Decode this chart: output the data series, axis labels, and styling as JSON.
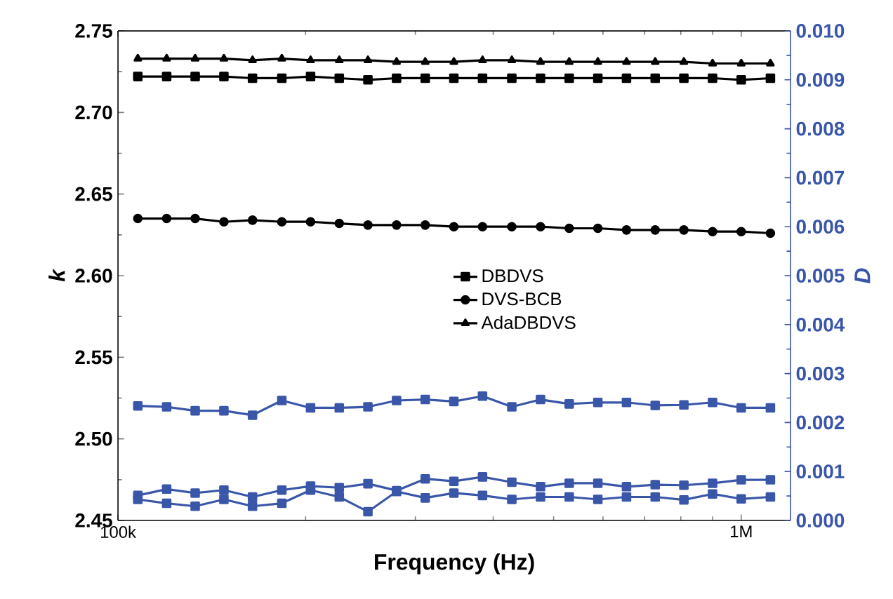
{
  "chart_data": {
    "type": "line",
    "xlabel": "Frequency (Hz)",
    "ylabel": "k",
    "y2label": "D",
    "log": "x",
    "x": [
      107600,
      119700,
      133000,
      147900,
      164400,
      183200,
      203700,
      226500,
      251800,
      279900,
      311200,
      345900,
      384600,
      428500,
      476400,
      529700,
      588800,
      654600,
      727800,
      809100,
      899500,
      1000000,
      1114000
    ],
    "xlim": [
      100000,
      1200000
    ],
    "xticks": [
      {
        "value": 100000,
        "label": "100k"
      },
      {
        "value": 1000000,
        "label": "1M"
      }
    ],
    "ylim": [
      2.45,
      2.75
    ],
    "yticks": [
      2.45,
      {
        "value": 2.5,
        "label": "2.50"
      },
      2.55,
      {
        "value": 2.6,
        "label": "2.60"
      },
      2.65,
      {
        "value": 2.7,
        "label": "2.70"
      },
      2.75
    ],
    "y2lim": [
      0,
      0.01
    ],
    "y2ticks": [
      {
        "value": 0,
        "label": "0.000"
      },
      0.001,
      0.002,
      0.003,
      0.004,
      0.005,
      0.006,
      0.007,
      0.008,
      0.009,
      {
        "value": 0.01,
        "label": "0.010"
      }
    ],
    "legend": "center",
    "series": [
      {
        "name": "DBDVS",
        "color": "#000000",
        "marker": "square",
        "values": [
          2.722,
          2.722,
          2.722,
          2.722,
          2.721,
          2.721,
          2.722,
          2.721,
          2.72,
          2.721,
          2.721,
          2.721,
          2.721,
          2.721,
          2.721,
          2.721,
          2.721,
          2.721,
          2.721,
          2.721,
          2.721,
          2.72,
          2.721
        ]
      },
      {
        "name": "DVS-BCB",
        "color": "#000000",
        "marker": "circle",
        "values": [
          2.635,
          2.635,
          2.635,
          2.633,
          2.634,
          2.633,
          2.633,
          2.632,
          2.631,
          2.631,
          2.631,
          2.63,
          2.63,
          2.63,
          2.63,
          2.629,
          2.629,
          2.628,
          2.628,
          2.628,
          2.627,
          2.627,
          2.626
        ]
      },
      {
        "name": "AdaDBDVS",
        "color": "#000000",
        "marker": "triangle",
        "values": [
          2.733,
          2.733,
          2.733,
          2.733,
          2.732,
          2.733,
          2.732,
          2.732,
          2.732,
          2.731,
          2.731,
          2.731,
          2.732,
          2.732,
          2.731,
          2.731,
          2.731,
          2.731,
          2.731,
          2.731,
          2.73,
          2.73,
          2.73
        ]
      },
      {
        "color": "#3a56a8",
        "marker": "square",
        "axis": "y2",
        "values": [
          0.00234,
          0.00232,
          0.00224,
          0.00224,
          0.00215,
          0.00245,
          0.0023,
          0.0023,
          0.00232,
          0.00245,
          0.00247,
          0.00243,
          0.00254,
          0.00232,
          0.00247,
          0.00238,
          0.00241,
          0.00241,
          0.00235,
          0.00236,
          0.00241,
          0.0023,
          0.0023
        ]
      },
      {
        "color": "#3a56a8",
        "marker": "square",
        "axis": "y2",
        "values": [
          0.00051,
          0.00064,
          0.00056,
          0.00062,
          0.00048,
          0.00062,
          0.0007,
          0.00067,
          0.00075,
          0.00061,
          0.00085,
          0.0008,
          0.00089,
          0.00078,
          0.00069,
          0.00076,
          0.00076,
          0.00069,
          0.00073,
          0.00072,
          0.00076,
          0.00083,
          0.00083
        ]
      },
      {
        "color": "#3a56a8",
        "marker": "square",
        "axis": "y2",
        "values": [
          0.00043,
          0.00035,
          0.00029,
          0.00043,
          0.00029,
          0.00035,
          0.00062,
          0.00048,
          0.00018,
          0.00059,
          0.00046,
          0.00056,
          0.00051,
          0.00043,
          0.00048,
          0.00048,
          0.00043,
          0.00048,
          0.00048,
          0.00042,
          0.00054,
          0.00044,
          0.00048
        ]
      }
    ]
  }
}
